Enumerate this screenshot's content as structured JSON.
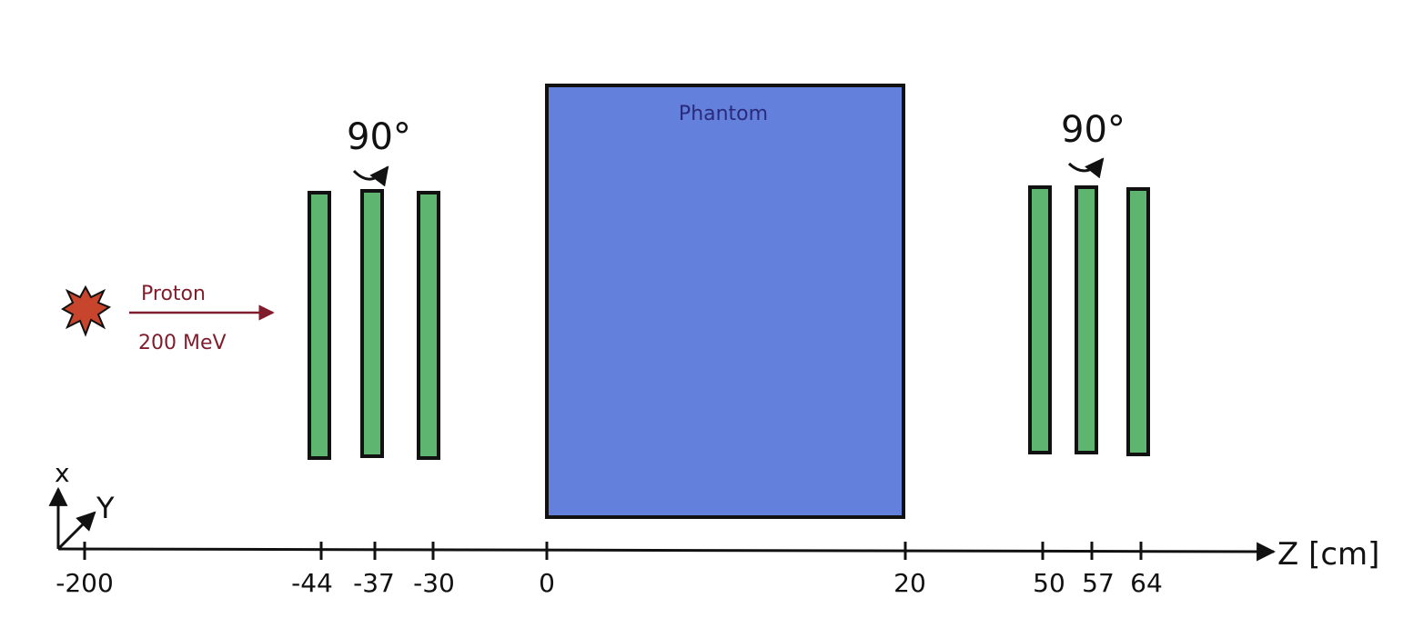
{
  "beam": {
    "particle": "Proton",
    "energy": "200 MeV",
    "source_icon": "explosion-icon",
    "color": "#7f1d2d"
  },
  "phantom": {
    "label": "Phantom",
    "fill": "#6380dd"
  },
  "detectors": {
    "fill": "#5db56f",
    "upstream_rotation": "90°",
    "downstream_rotation": "90°"
  },
  "axes": {
    "z_label": "Z [cm]",
    "x_label": "x",
    "y_label": "Y",
    "ticks": [
      "-200",
      "-44",
      "-37",
      "-30",
      "0",
      "20",
      "50",
      "57",
      "64"
    ]
  },
  "colors": {
    "source": "#c8452d",
    "axis": "#111111"
  }
}
